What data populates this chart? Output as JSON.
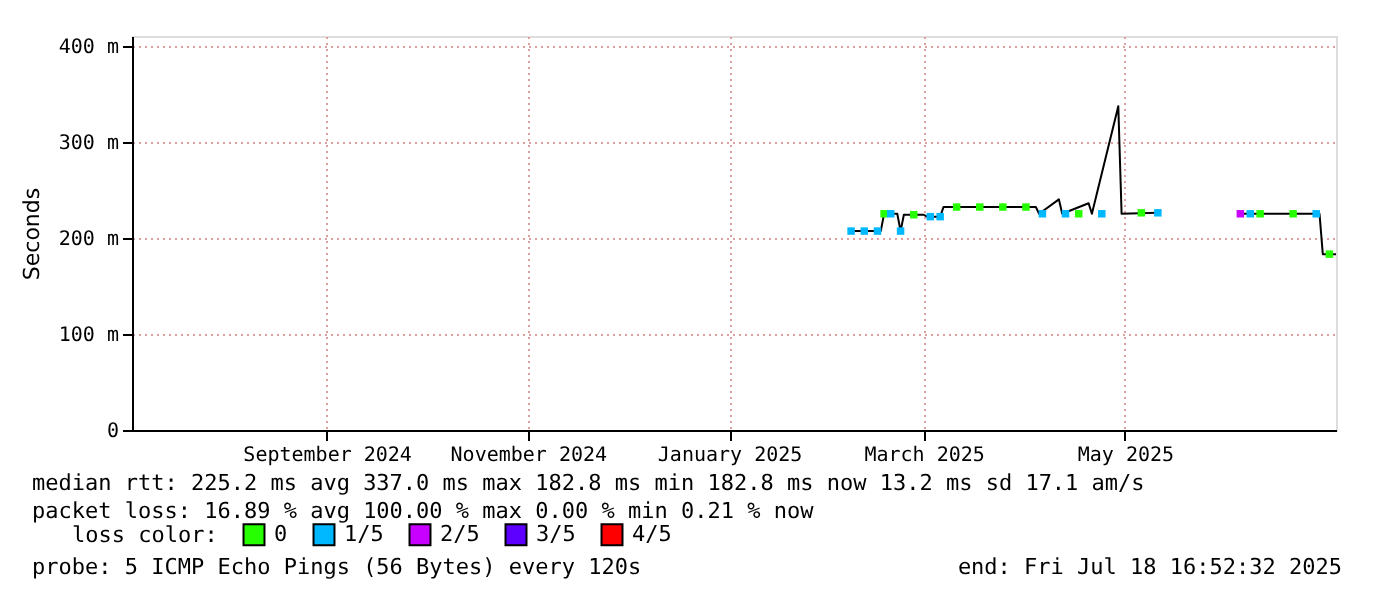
{
  "chart_data": {
    "type": "scatter",
    "ylabel": "Seconds",
    "legend_title": "loss color:",
    "legend": "bottom",
    "grid": true,
    "marker": "square",
    "xlim": [
      "2024-07-18",
      "2025-07-18"
    ],
    "xticks": [
      {
        "value": "2024-09-15",
        "label": "September 2024"
      },
      {
        "value": "2024-11-15",
        "label": "November 2024"
      },
      {
        "value": "2025-01-15",
        "label": "January 2025"
      },
      {
        "value": "2025-03-15",
        "label": "March 2025"
      },
      {
        "value": "2025-05-15",
        "label": "May 2025"
      }
    ],
    "ylim": [
      0,
      410
    ],
    "yticks": [
      0,
      {
        "value": 100,
        "label": "100 m"
      },
      {
        "value": 200,
        "label": "200 m"
      },
      {
        "value": 300,
        "label": "300 m"
      },
      {
        "value": 400,
        "label": "400 m"
      }
    ],
    "series": [
      {
        "type": "line",
        "marker": "none",
        "color": "#000000",
        "x": [
          "2025-02-21",
          "2025-03-02",
          "2025-03-03",
          "2025-03-07",
          "2025-03-08",
          "2025-03-09",
          "2025-03-15",
          "2025-03-16",
          "2025-03-20",
          "2025-03-21",
          "2025-04-18",
          "2025-04-19",
          "2025-04-25",
          "2025-04-26",
          "2025-05-04",
          "2025-05-05",
          "2025-05-13",
          "2025-05-14",
          "2025-05-25",
          "2025-06-05",
          "2025-06-19",
          "2025-07-13",
          "2025-07-14",
          "2025-07-18"
        ],
        "values": [
          207,
          207,
          225,
          225,
          207,
          224,
          224,
          222,
          222,
          232,
          232,
          225,
          240,
          225,
          236,
          225,
          337,
          225,
          226,
          null,
          225,
          225,
          183,
          183
        ]
      },
      {
        "name": "0",
        "color": "#26ff00",
        "x": [
          "2025-03-03",
          "2025-03-12",
          "2025-03-25",
          "2025-04-01",
          "2025-04-08",
          "2025-04-15",
          "2025-05-01",
          "2025-05-20",
          "2025-06-25",
          "2025-07-05",
          "2025-07-16"
        ],
        "values": [
          225,
          224,
          232,
          232,
          232,
          232,
          225,
          226,
          225,
          225,
          183
        ]
      },
      {
        "name": "1/5",
        "color": "#00b8ff",
        "x": [
          "2025-02-21",
          "2025-02-25",
          "2025-03-01",
          "2025-03-05",
          "2025-03-08",
          "2025-03-17",
          "2025-03-20",
          "2025-04-20",
          "2025-04-27",
          "2025-05-08",
          "2025-05-25",
          "2025-06-22",
          "2025-07-12"
        ],
        "values": [
          207,
          207,
          207,
          225,
          207,
          222,
          222,
          225,
          225,
          225,
          226,
          225,
          225
        ]
      },
      {
        "name": "2/5",
        "color": "#c800ff",
        "x": [
          "2025-06-19"
        ],
        "values": [
          225
        ]
      },
      {
        "name": "3/5",
        "color": "#5e00ff"
      },
      {
        "name": "4/5",
        "color": "#ff0000"
      }
    ],
    "annotations": [
      "median rtt:  225.2 ms avg  337.0 ms max  182.8 ms min  182.8 ms now  13.2 ms sd  17.1   am/s",
      "packet loss: 16.89 % avg  100.00 % max  0.00 % min  0.21 % now",
      "probe:       5 ICMP Echo Pings (56 Bytes) every 120s",
      "end: Fri Jul 18 16:52:32 2025"
    ]
  }
}
